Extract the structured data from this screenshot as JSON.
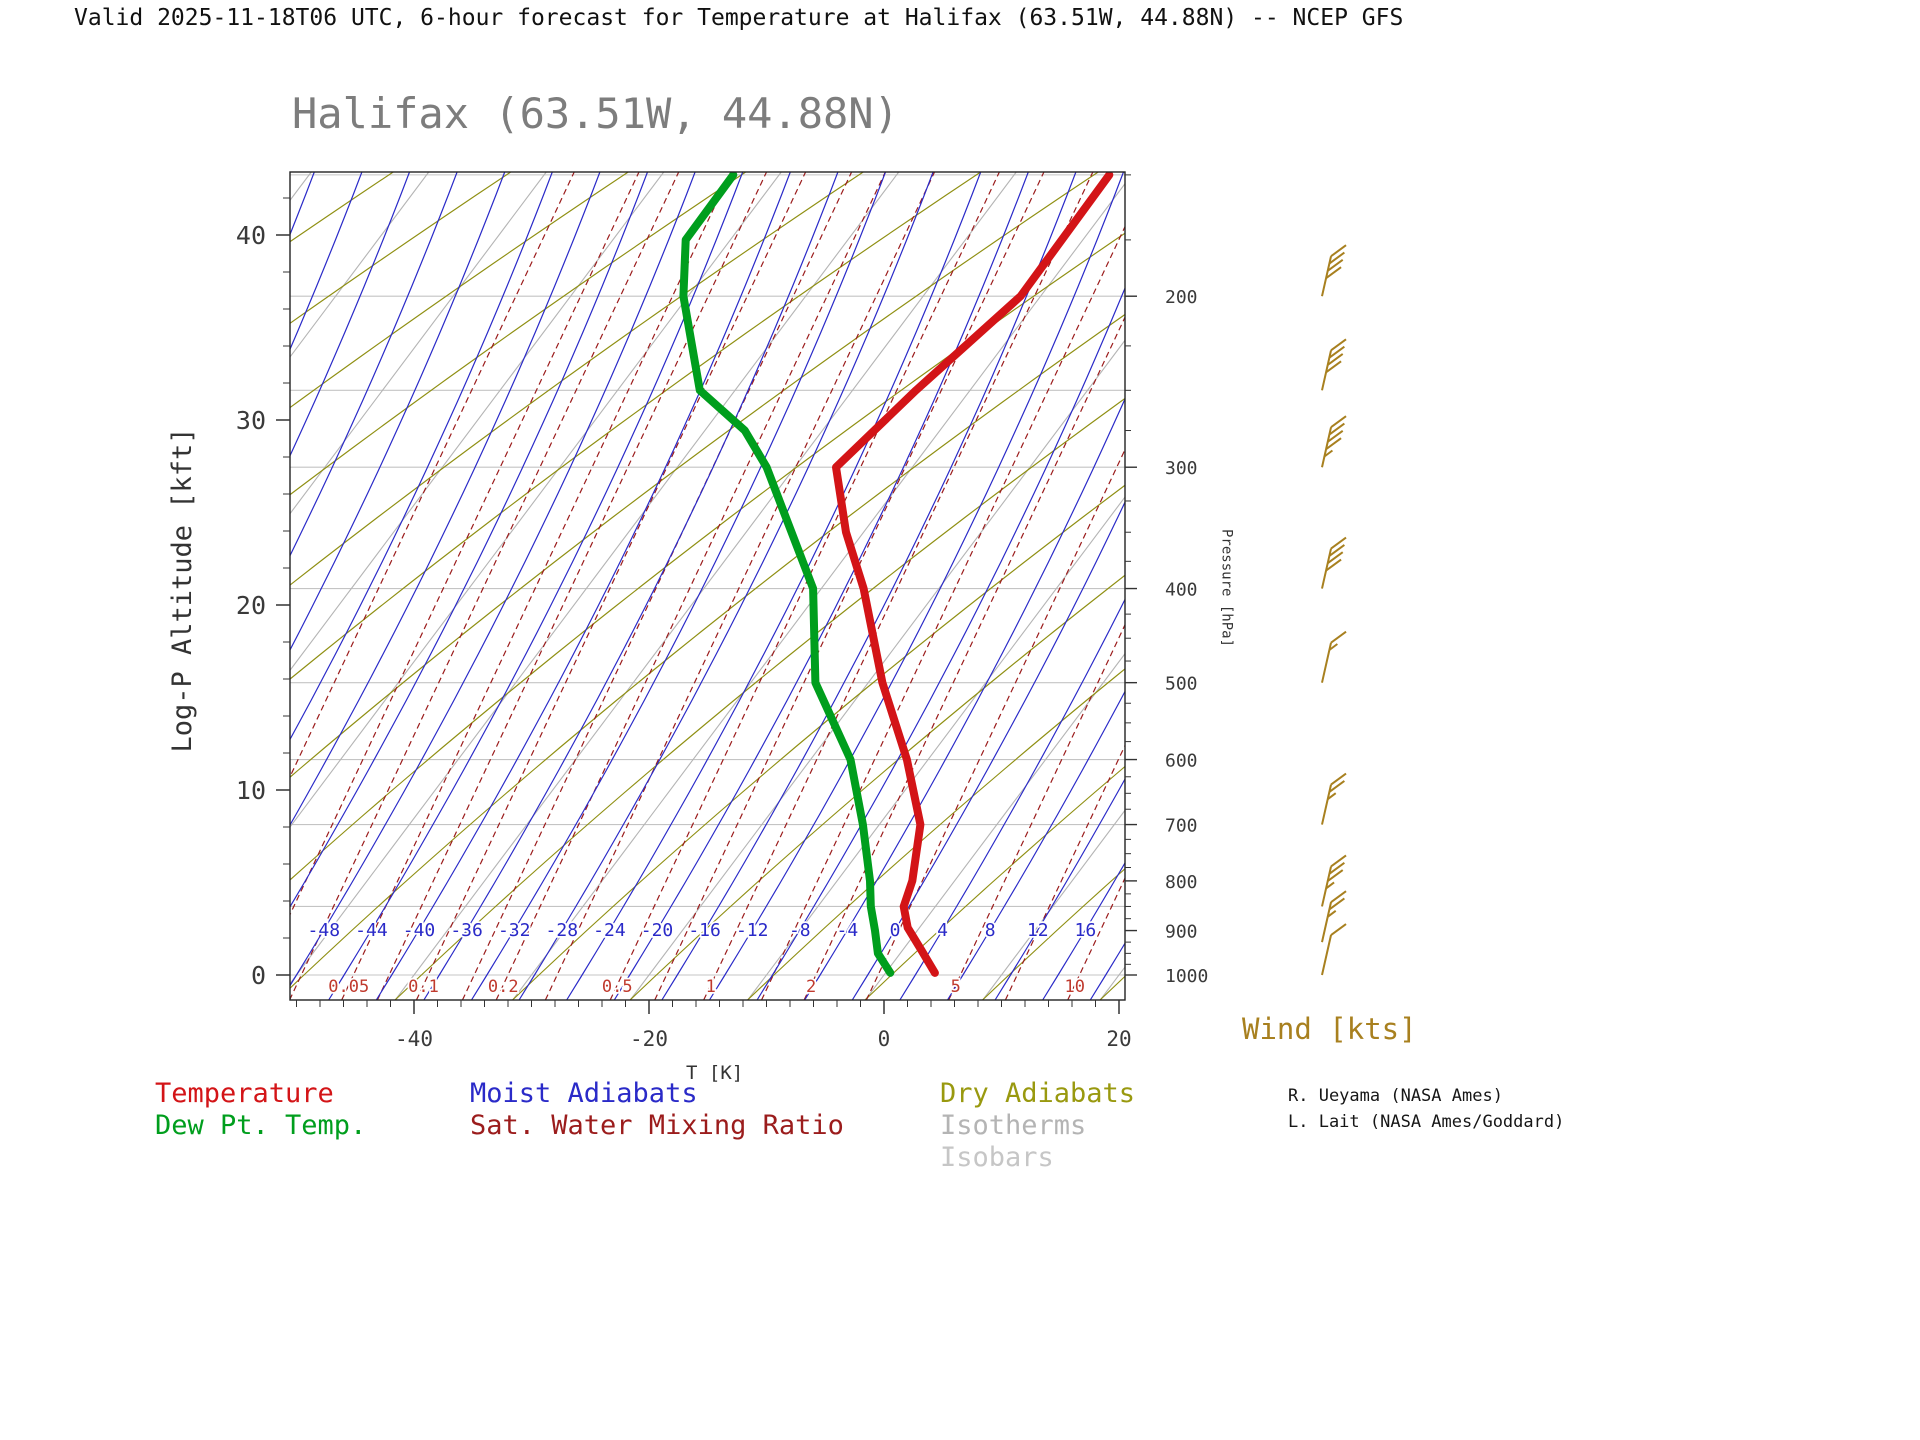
{
  "header": {
    "title": "Valid 2025-11-18T06 UTC, 6-hour forecast for Temperature at Halifax (63.51W, 44.88N) -- NCEP GFS"
  },
  "chart_title": "Halifax (63.51W, 44.88N)",
  "colors": {
    "temperature": "#d31417",
    "dew_point": "#009e1d",
    "moist_adiabat": "#2a2ac8",
    "dry_adiabat": "#8f8f12",
    "mixing_ratio": "#9b1c1c",
    "mixing_ratio_label": "#c03a2e",
    "isotherm": "#b4b4b4",
    "isobar": "#c4c4c4",
    "wind": "#a8801f",
    "title": "#7d7d7d",
    "axis": "#333333"
  },
  "chart_data": {
    "type": "skewt_log_p_sounding",
    "x_axis": {
      "label": "T [K]",
      "tick_labels": [
        -40,
        -20,
        0,
        20
      ]
    },
    "y_axis_left": {
      "label": "Log-P Altitude [kft]",
      "tick_labels": [
        0,
        10,
        20,
        30,
        40
      ],
      "range_kft": [
        0,
        43
      ]
    },
    "y_axis_right": {
      "label": "Pressure [hPa]",
      "tick_labels": [
        200,
        300,
        400,
        500,
        600,
        700,
        800,
        900,
        1000
      ]
    },
    "isobar_levels_hPa": [
      150,
      200,
      250,
      300,
      400,
      500,
      600,
      700,
      850,
      1000
    ],
    "isotherm_interval_K": 10,
    "temperature_profile": {
      "units": [
        "hPa",
        "degC"
      ],
      "points": [
        [
          995,
          4.2
        ],
        [
          943,
          1.6
        ],
        [
          894,
          -1.0
        ],
        [
          850,
          -2.7
        ],
        [
          800,
          -3.6
        ],
        [
          700,
          -6.5
        ],
        [
          600,
          -11.8
        ],
        [
          500,
          -18.8
        ],
        [
          400,
          -26.4
        ],
        [
          350,
          -31.5
        ],
        [
          300,
          -36.5
        ],
        [
          250,
          -34.6
        ],
        [
          200,
          -31.7
        ],
        [
          150,
          -31.9
        ]
      ]
    },
    "dewpoint_profile": {
      "units": [
        "hPa",
        "degC"
      ],
      "points": [
        [
          995,
          0.4
        ],
        [
          950,
          -1.9
        ],
        [
          900,
          -3.6
        ],
        [
          850,
          -5.5
        ],
        [
          800,
          -7.2
        ],
        [
          700,
          -11.4
        ],
        [
          600,
          -16.6
        ],
        [
          500,
          -24.5
        ],
        [
          400,
          -30.7
        ],
        [
          300,
          -42.4
        ],
        [
          275,
          -46.6
        ],
        [
          250,
          -53.0
        ],
        [
          200,
          -60.4
        ],
        [
          175,
          -63.8
        ],
        [
          150,
          -63.9
        ]
      ]
    },
    "moist_adiabat_labels_degC": [
      -48,
      -44,
      -40,
      -36,
      -32,
      -28,
      -24,
      -20,
      -16,
      -12,
      -8,
      -4,
      0,
      4,
      8,
      12,
      16
    ],
    "mixing_ratio_labels_g_per_kg": [
      0.05,
      0.1,
      0.2,
      0.5,
      1,
      2,
      5,
      10
    ],
    "mixing_ratio_lines_g_per_kg": [
      0.01,
      0.02,
      0.03,
      0.05,
      0.07,
      0.1,
      0.15,
      0.2,
      0.3,
      0.5,
      0.7,
      1,
      1.5,
      2,
      3,
      5,
      7,
      10,
      15,
      20,
      30
    ],
    "winds": [
      {
        "p_hPa": 1000,
        "speed_kts": 10,
        "full_barbs": 1,
        "half_barbs": 0
      },
      {
        "p_hPa": 925,
        "speed_kts": 25,
        "full_barbs": 2,
        "half_barbs": 1
      },
      {
        "p_hPa": 850,
        "speed_kts": 35,
        "full_barbs": 3,
        "half_barbs": 1
      },
      {
        "p_hPa": 700,
        "speed_kts": 25,
        "full_barbs": 2,
        "half_barbs": 1
      },
      {
        "p_hPa": 500,
        "speed_kts": 15,
        "full_barbs": 1,
        "half_barbs": 1
      },
      {
        "p_hPa": 400,
        "speed_kts": 40,
        "full_barbs": 4,
        "half_barbs": 0
      },
      {
        "p_hPa": 300,
        "speed_kts": 45,
        "full_barbs": 4,
        "half_barbs": 1
      },
      {
        "p_hPa": 250,
        "speed_kts": 40,
        "full_barbs": 4,
        "half_barbs": 0
      },
      {
        "p_hPa": 200,
        "speed_kts": 40,
        "full_barbs": 4,
        "half_barbs": 0
      }
    ]
  },
  "legend": {
    "temperature": "Temperature",
    "dew_point": "Dew Pt. Temp.",
    "moist_adiabats": "Moist Adiabats",
    "mixing_ratio": "Sat. Water Mixing Ratio",
    "dry_adiabats": "Dry Adiabats",
    "isotherms": "Isotherms",
    "isobars": "Isobars"
  },
  "wind_units_label": "Wind [kts]",
  "credits": [
    "R. Ueyama (NASA Ames)",
    "L. Lait (NASA Ames/Goddard)"
  ]
}
